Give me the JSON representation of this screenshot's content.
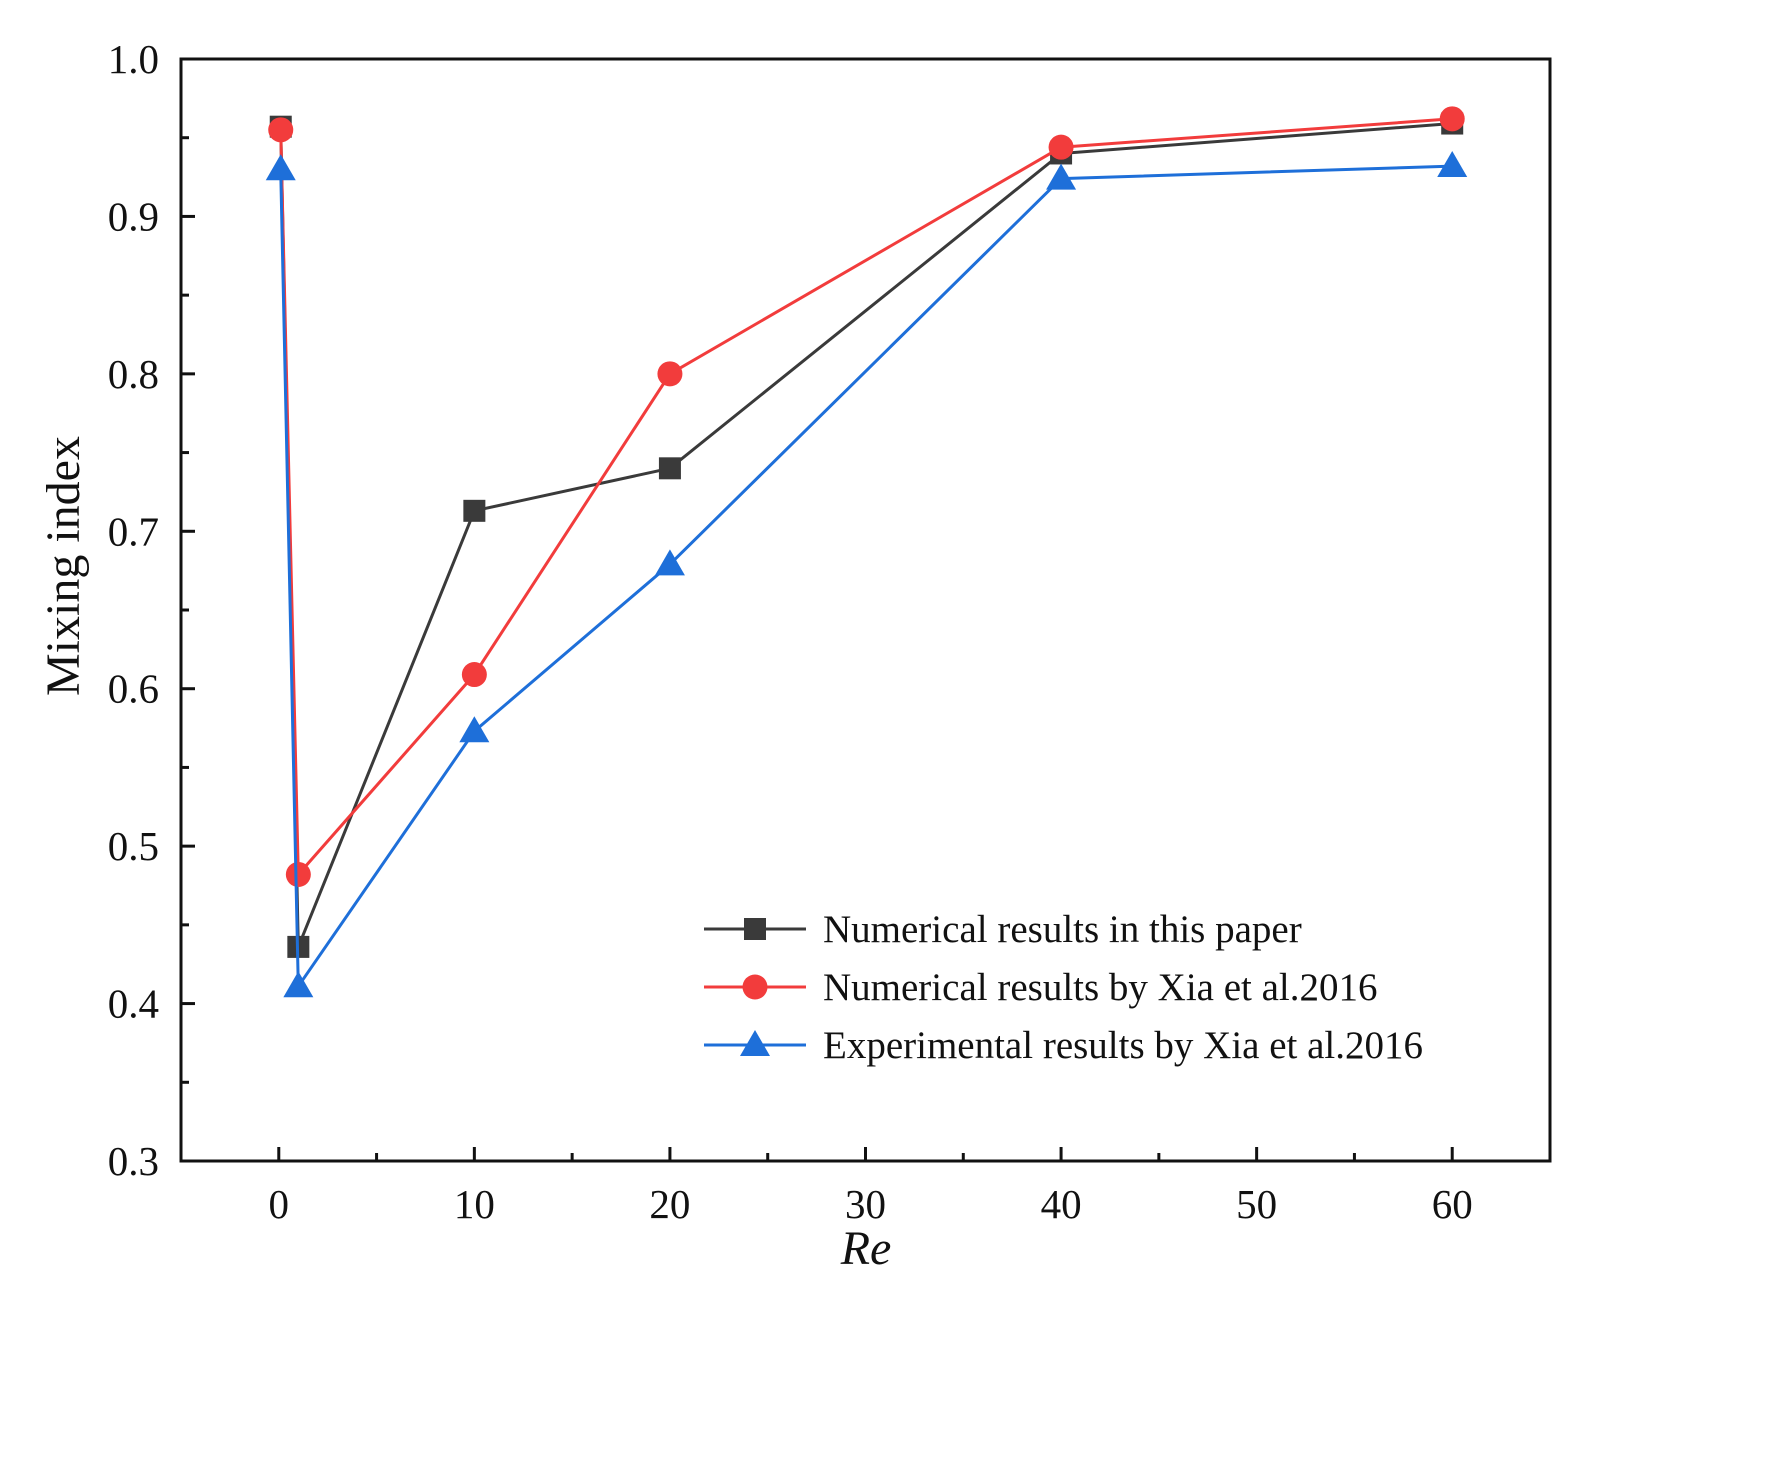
{
  "chart_data": {
    "type": "line",
    "xlabel": "Re",
    "ylabel": "Mixing index",
    "xlim": [
      -5,
      65
    ],
    "ylim": [
      0.3,
      1.0
    ],
    "x_ticks": [
      0,
      10,
      20,
      30,
      40,
      50,
      60
    ],
    "x_tick_labels": [
      "0",
      "10",
      "20",
      "30",
      "40",
      "50",
      "60"
    ],
    "y_ticks": [
      0.3,
      0.4,
      0.5,
      0.6,
      0.7,
      0.8,
      0.9,
      1.0
    ],
    "y_tick_labels": [
      "0.3",
      "0.4",
      "0.5",
      "0.6",
      "0.7",
      "0.8",
      "0.9",
      "1.0"
    ],
    "grid": false,
    "legend_position": "lower-right",
    "series": [
      {
        "name": "Numerical results in this paper",
        "color": "#3a3a3a",
        "marker": "square",
        "x": [
          0.1,
          1,
          10,
          20,
          40,
          60
        ],
        "y": [
          0.957,
          0.436,
          0.713,
          0.74,
          0.94,
          0.959
        ]
      },
      {
        "name": "Numerical results by Xia et al.2016",
        "color": "#f23c3c",
        "marker": "circle",
        "x": [
          0.1,
          1,
          10,
          20,
          40,
          60
        ],
        "y": [
          0.955,
          0.482,
          0.609,
          0.8,
          0.944,
          0.962
        ]
      },
      {
        "name": "Experimental results by Xia et al.2016",
        "color": "#1e6fd9",
        "marker": "triangle",
        "x": [
          0.1,
          1,
          10,
          20,
          40,
          60
        ],
        "y": [
          0.93,
          0.411,
          0.573,
          0.679,
          0.924,
          0.932
        ]
      }
    ]
  }
}
